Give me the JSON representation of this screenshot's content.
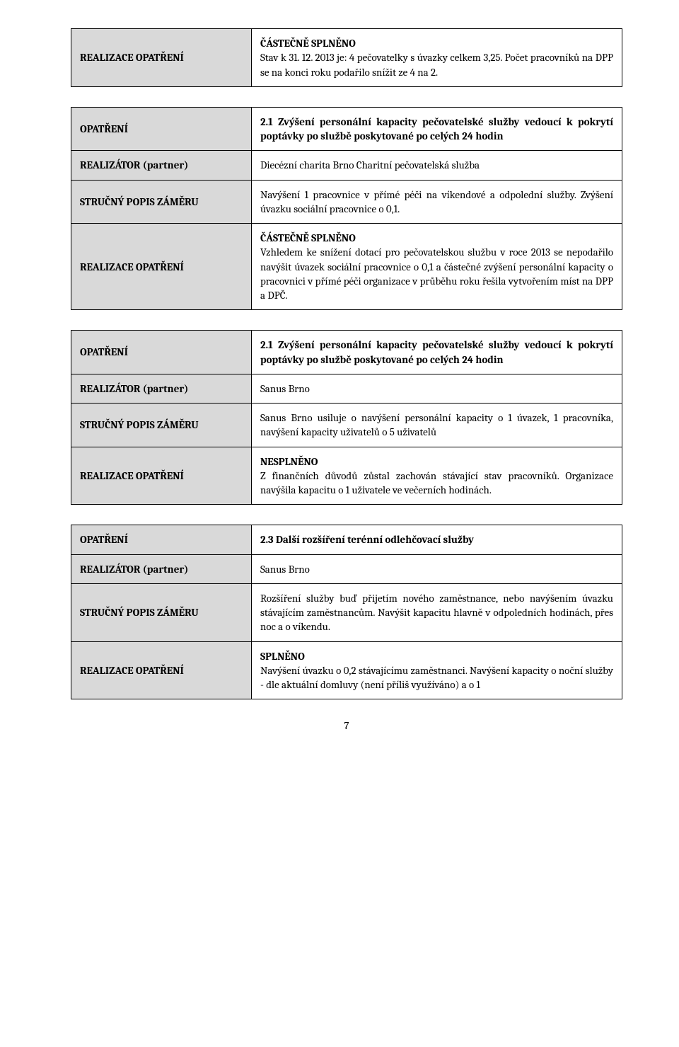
{
  "labels": {
    "realizace": "REALIZACE OPATŘENÍ",
    "opatreni": "OPATŘENÍ",
    "realizator": "REALIZÁTOR (partner)",
    "zamer": "STRUČNÝ POPIS ZÁMĚRU"
  },
  "block0": {
    "status": "ČÁSTEČNĚ SPLNĚNO",
    "text": "Stav k 31. 12. 2013 je: 4 pečovatelky s úvazky celkem 3,25. Počet pracovníků na DPP se na konci roku podařilo snížit ze 4 na 2."
  },
  "block1": {
    "opatreni": "2.1 Zvýšení personální kapacity pečovatelské služby vedoucí k pokrytí poptávky po službě poskytované po celých 24 hodin",
    "realizator": "Diecézní charita Brno Charitní pečovatelská služba",
    "zamer": "Navýšení 1 pracovnice v přímé péči na víkendové a odpolední služby. Zvýšení úvazku sociální pracovnice o 0,1.",
    "status": "ČÁSTEČNĚ SPLNĚNO",
    "realizace": "Vzhledem ke snížení dotací pro pečovatelskou službu v roce 2013 se nepodařilo navýšit úvazek sociální pracovnice o 0,1 a částečné zvýšení personální kapacity o pracovnici v přímé péči organizace v průběhu roku řešila vytvořením míst na DPP a DPČ."
  },
  "block2": {
    "opatreni": "2.1 Zvýšení personální kapacity pečovatelské služby vedoucí k pokrytí poptávky po službě poskytované po celých 24 hodin",
    "realizator": "Sanus Brno",
    "zamer": "Sanus Brno usiluje o navýšení personální kapacity o 1 úvazek, 1 pracovníka, navýšení kapacity uživatelů o 5 uživatelů",
    "status": "NESPLNĚNO",
    "realizace": "Z finančních důvodů zůstal zachován stávající stav pracovníků. Organizace navýšila kapacitu o 1 uživatele ve večerních hodinách."
  },
  "block3": {
    "opatreni": "2.3 Další rozšíření terénní odlehčovací služby",
    "realizator": "Sanus Brno",
    "zamer": "Rozšíření služby buď přijetím nového zaměstnance, nebo navýšením úvazku stávajícím zaměstnancům. Navýšit kapacitu hlavně v odpoledních hodinách, přes noc a o víkendu.",
    "status": "SPLNĚNO",
    "realizace": "Navýšení úvazku o 0,2 stávajícímu zaměstnanci. Navýšení kapacity o noční služby - dle aktuální domluvy (není příliš využíváno) a o 1"
  },
  "page_number": "7"
}
